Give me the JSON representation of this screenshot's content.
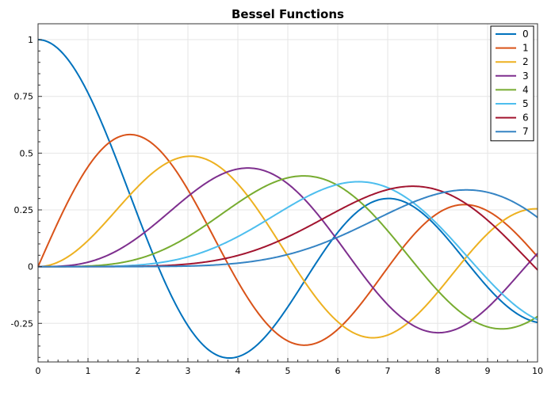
{
  "chart_data": {
    "type": "line",
    "title": "Bessel Functions",
    "xlabel": "",
    "ylabel": "",
    "xlim": [
      0,
      10
    ],
    "ylim": [
      -0.42,
      1.07
    ],
    "x_ticks": [
      "0",
      "1",
      "2",
      "3",
      "4",
      "5",
      "6",
      "7",
      "8",
      "9",
      "10"
    ],
    "y_ticks": [
      "-0.25",
      "0",
      "0.25",
      "0.5",
      "0.75",
      "1"
    ],
    "grid": true,
    "legend": "top-right",
    "function": "bessel_j",
    "x_range": [
      0,
      10
    ],
    "series": [
      {
        "name": "0",
        "order": 0,
        "color": "#0072BD"
      },
      {
        "name": "1",
        "order": 1,
        "color": "#D95319"
      },
      {
        "name": "2",
        "order": 2,
        "color": "#EDB120"
      },
      {
        "name": "3",
        "order": 3,
        "color": "#7E2F8E"
      },
      {
        "name": "4",
        "order": 4,
        "color": "#77AC30"
      },
      {
        "name": "5",
        "order": 5,
        "color": "#4DBEEE"
      },
      {
        "name": "6",
        "order": 6,
        "color": "#A2142F"
      },
      {
        "name": "7",
        "order": 7,
        "color": "#3584C4"
      }
    ]
  }
}
